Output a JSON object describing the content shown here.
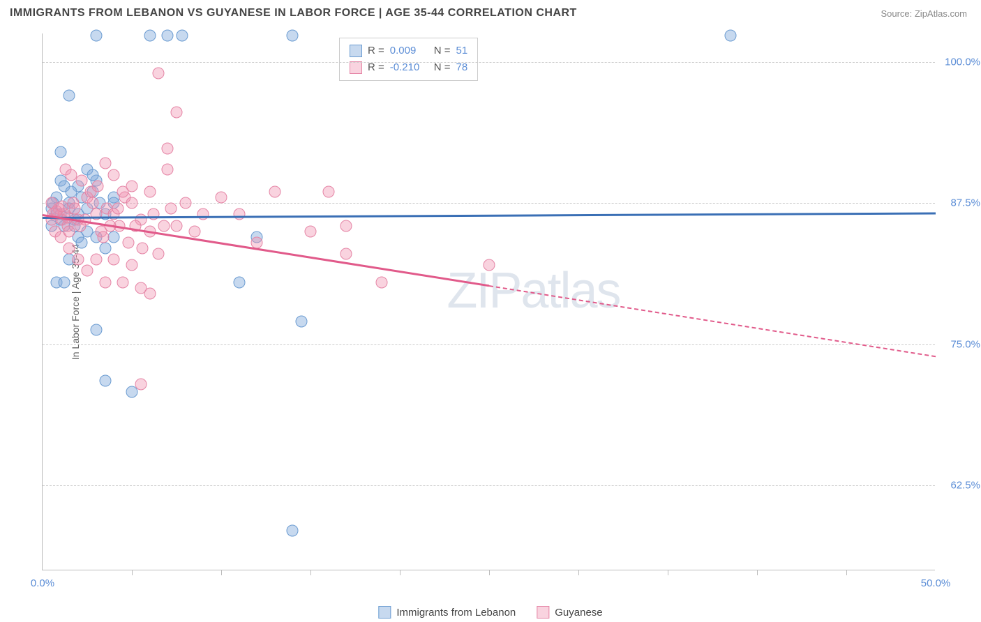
{
  "header": {
    "title": "IMMIGRANTS FROM LEBANON VS GUYANESE IN LABOR FORCE | AGE 35-44 CORRELATION CHART",
    "source": "Source: ZipAtlas.com"
  },
  "chart": {
    "type": "scatter",
    "y_axis_title": "In Labor Force | Age 35-44",
    "x_domain": [
      0,
      50
    ],
    "y_domain": [
      55,
      102.5
    ],
    "x_tick_labels": [
      {
        "x": 0,
        "label": "0.0%"
      },
      {
        "x": 50,
        "label": "50.0%"
      }
    ],
    "x_ticks": [
      5,
      10,
      15,
      20,
      25,
      30,
      35,
      40,
      45
    ],
    "y_ticks": [
      {
        "y": 62.5,
        "label": "62.5%"
      },
      {
        "y": 75.0,
        "label": "75.0%"
      },
      {
        "y": 87.5,
        "label": "87.5%"
      },
      {
        "y": 100.0,
        "label": "100.0%"
      }
    ],
    "grid_color": "#cccccc",
    "border_color": "#bbbbbb",
    "background_color": "#ffffff",
    "series": [
      {
        "name": "Immigrants from Lebanon",
        "color_fill": "rgba(130,170,220,0.45)",
        "color_stroke": "#6a9bd1",
        "marker_size": 17,
        "points": [
          [
            0.5,
            87
          ],
          [
            0.8,
            86.5
          ],
          [
            1,
            86
          ],
          [
            1.2,
            85.5
          ],
          [
            1.5,
            87.5
          ],
          [
            1.8,
            86
          ],
          [
            2,
            84.5
          ],
          [
            2.2,
            88
          ],
          [
            2.5,
            85
          ],
          [
            0.8,
            80.5
          ],
          [
            1,
            89.5
          ],
          [
            3,
            102.3
          ],
          [
            4,
            84.5
          ],
          [
            3,
            76.3
          ],
          [
            6,
            102.3
          ],
          [
            7,
            102.3
          ],
          [
            7.8,
            102.3
          ],
          [
            1.5,
            97
          ],
          [
            1,
            92
          ],
          [
            2,
            89
          ],
          [
            2.5,
            90.5
          ],
          [
            3,
            89.5
          ],
          [
            2.8,
            88.5
          ],
          [
            3,
            84.5
          ],
          [
            3.5,
            83.5
          ],
          [
            4,
            88
          ],
          [
            3.5,
            71.8
          ],
          [
            5,
            70.8
          ],
          [
            1.2,
            80.5
          ],
          [
            1.5,
            82.5
          ],
          [
            12,
            84.5
          ],
          [
            14,
            102.3
          ],
          [
            11,
            80.5
          ],
          [
            14.5,
            77
          ],
          [
            14,
            58.5
          ],
          [
            38.5,
            102.3
          ],
          [
            1,
            86.5
          ],
          [
            1.5,
            87
          ],
          [
            0.8,
            88
          ],
          [
            1.2,
            89
          ],
          [
            2,
            86.5
          ],
          [
            2.5,
            87
          ],
          [
            1.8,
            85.5
          ],
          [
            2.2,
            84
          ],
          [
            3.5,
            86.5
          ],
          [
            4,
            87.5
          ],
          [
            0.5,
            85.5
          ],
          [
            0.6,
            87.5
          ],
          [
            2.8,
            90
          ],
          [
            3.2,
            87.5
          ],
          [
            1.6,
            88.5
          ]
        ],
        "trend": {
          "start": [
            0,
            86.3
          ],
          "end": [
            50,
            86.7
          ],
          "solid_until_x": 50,
          "line_color": "#3a6fb5"
        },
        "legend": {
          "r_label": "R =",
          "r_value": "0.009",
          "n_label": "N =",
          "n_value": "51"
        }
      },
      {
        "name": "Guyanese",
        "color_fill": "rgba(240,145,175,0.40)",
        "color_stroke": "#e584a5",
        "marker_size": 17,
        "points": [
          [
            0.6,
            86.5
          ],
          [
            0.9,
            87
          ],
          [
            1.1,
            86
          ],
          [
            1.4,
            85.5
          ],
          [
            1.7,
            87.5
          ],
          [
            2,
            86
          ],
          [
            1.3,
            90.5
          ],
          [
            1.6,
            90
          ],
          [
            2.2,
            89.5
          ],
          [
            2.5,
            88
          ],
          [
            2.8,
            87.5
          ],
          [
            3,
            86.5
          ],
          [
            3.3,
            85
          ],
          [
            3.6,
            87
          ],
          [
            4,
            86.5
          ],
          [
            4.3,
            85.5
          ],
          [
            4.6,
            88
          ],
          [
            5,
            87.5
          ],
          [
            5.5,
            86
          ],
          [
            6,
            85
          ],
          [
            3.5,
            91
          ],
          [
            4,
            90
          ],
          [
            5,
            89
          ],
          [
            6,
            88.5
          ],
          [
            7,
            92.3
          ],
          [
            7,
            90.5
          ],
          [
            7.5,
            95.5
          ],
          [
            6.5,
            99
          ],
          [
            1.5,
            83.5
          ],
          [
            2,
            82.5
          ],
          [
            2.5,
            81.5
          ],
          [
            3,
            82.5
          ],
          [
            3.5,
            80.5
          ],
          [
            4,
            82.5
          ],
          [
            4.5,
            80.5
          ],
          [
            5,
            82
          ],
          [
            5.5,
            80
          ],
          [
            6,
            79.5
          ],
          [
            6.5,
            83
          ],
          [
            5.5,
            71.5
          ],
          [
            7.5,
            85.5
          ],
          [
            9,
            86.5
          ],
          [
            10,
            88
          ],
          [
            13,
            88.5
          ],
          [
            16,
            88.5
          ],
          [
            15,
            85
          ],
          [
            17,
            85.5
          ],
          [
            17,
            83
          ],
          [
            19,
            80.5
          ],
          [
            25,
            82
          ],
          [
            0.5,
            87.5
          ],
          [
            0.7,
            85
          ],
          [
            1,
            84.5
          ],
          [
            1.2,
            86.5
          ],
          [
            1.5,
            85
          ],
          [
            1.8,
            87
          ],
          [
            2.1,
            85.5
          ],
          [
            2.4,
            86
          ],
          [
            2.7,
            88.5
          ],
          [
            3.1,
            89
          ],
          [
            3.4,
            84.5
          ],
          [
            3.8,
            85.5
          ],
          [
            4.2,
            87
          ],
          [
            4.5,
            88.5
          ],
          [
            4.8,
            84
          ],
          [
            5.2,
            85.5
          ],
          [
            5.6,
            83.5
          ],
          [
            6.2,
            86.5
          ],
          [
            6.8,
            85.5
          ],
          [
            7.2,
            87
          ],
          [
            8,
            87.5
          ],
          [
            8.5,
            85
          ],
          [
            11,
            86.5
          ],
          [
            12,
            84
          ],
          [
            0.5,
            86
          ],
          [
            0.8,
            86.8
          ],
          [
            1.1,
            87.2
          ],
          [
            1.4,
            86.2
          ]
        ],
        "trend": {
          "start": [
            0,
            86.5
          ],
          "end": [
            50,
            74.0
          ],
          "solid_until_x": 25,
          "line_color": "#e15a8a"
        },
        "legend": {
          "r_label": "R =",
          "r_value": "-0.210",
          "n_label": "N =",
          "n_value": "78"
        }
      }
    ],
    "watermark_strong": "ZIP",
    "watermark_light": "atlas"
  }
}
